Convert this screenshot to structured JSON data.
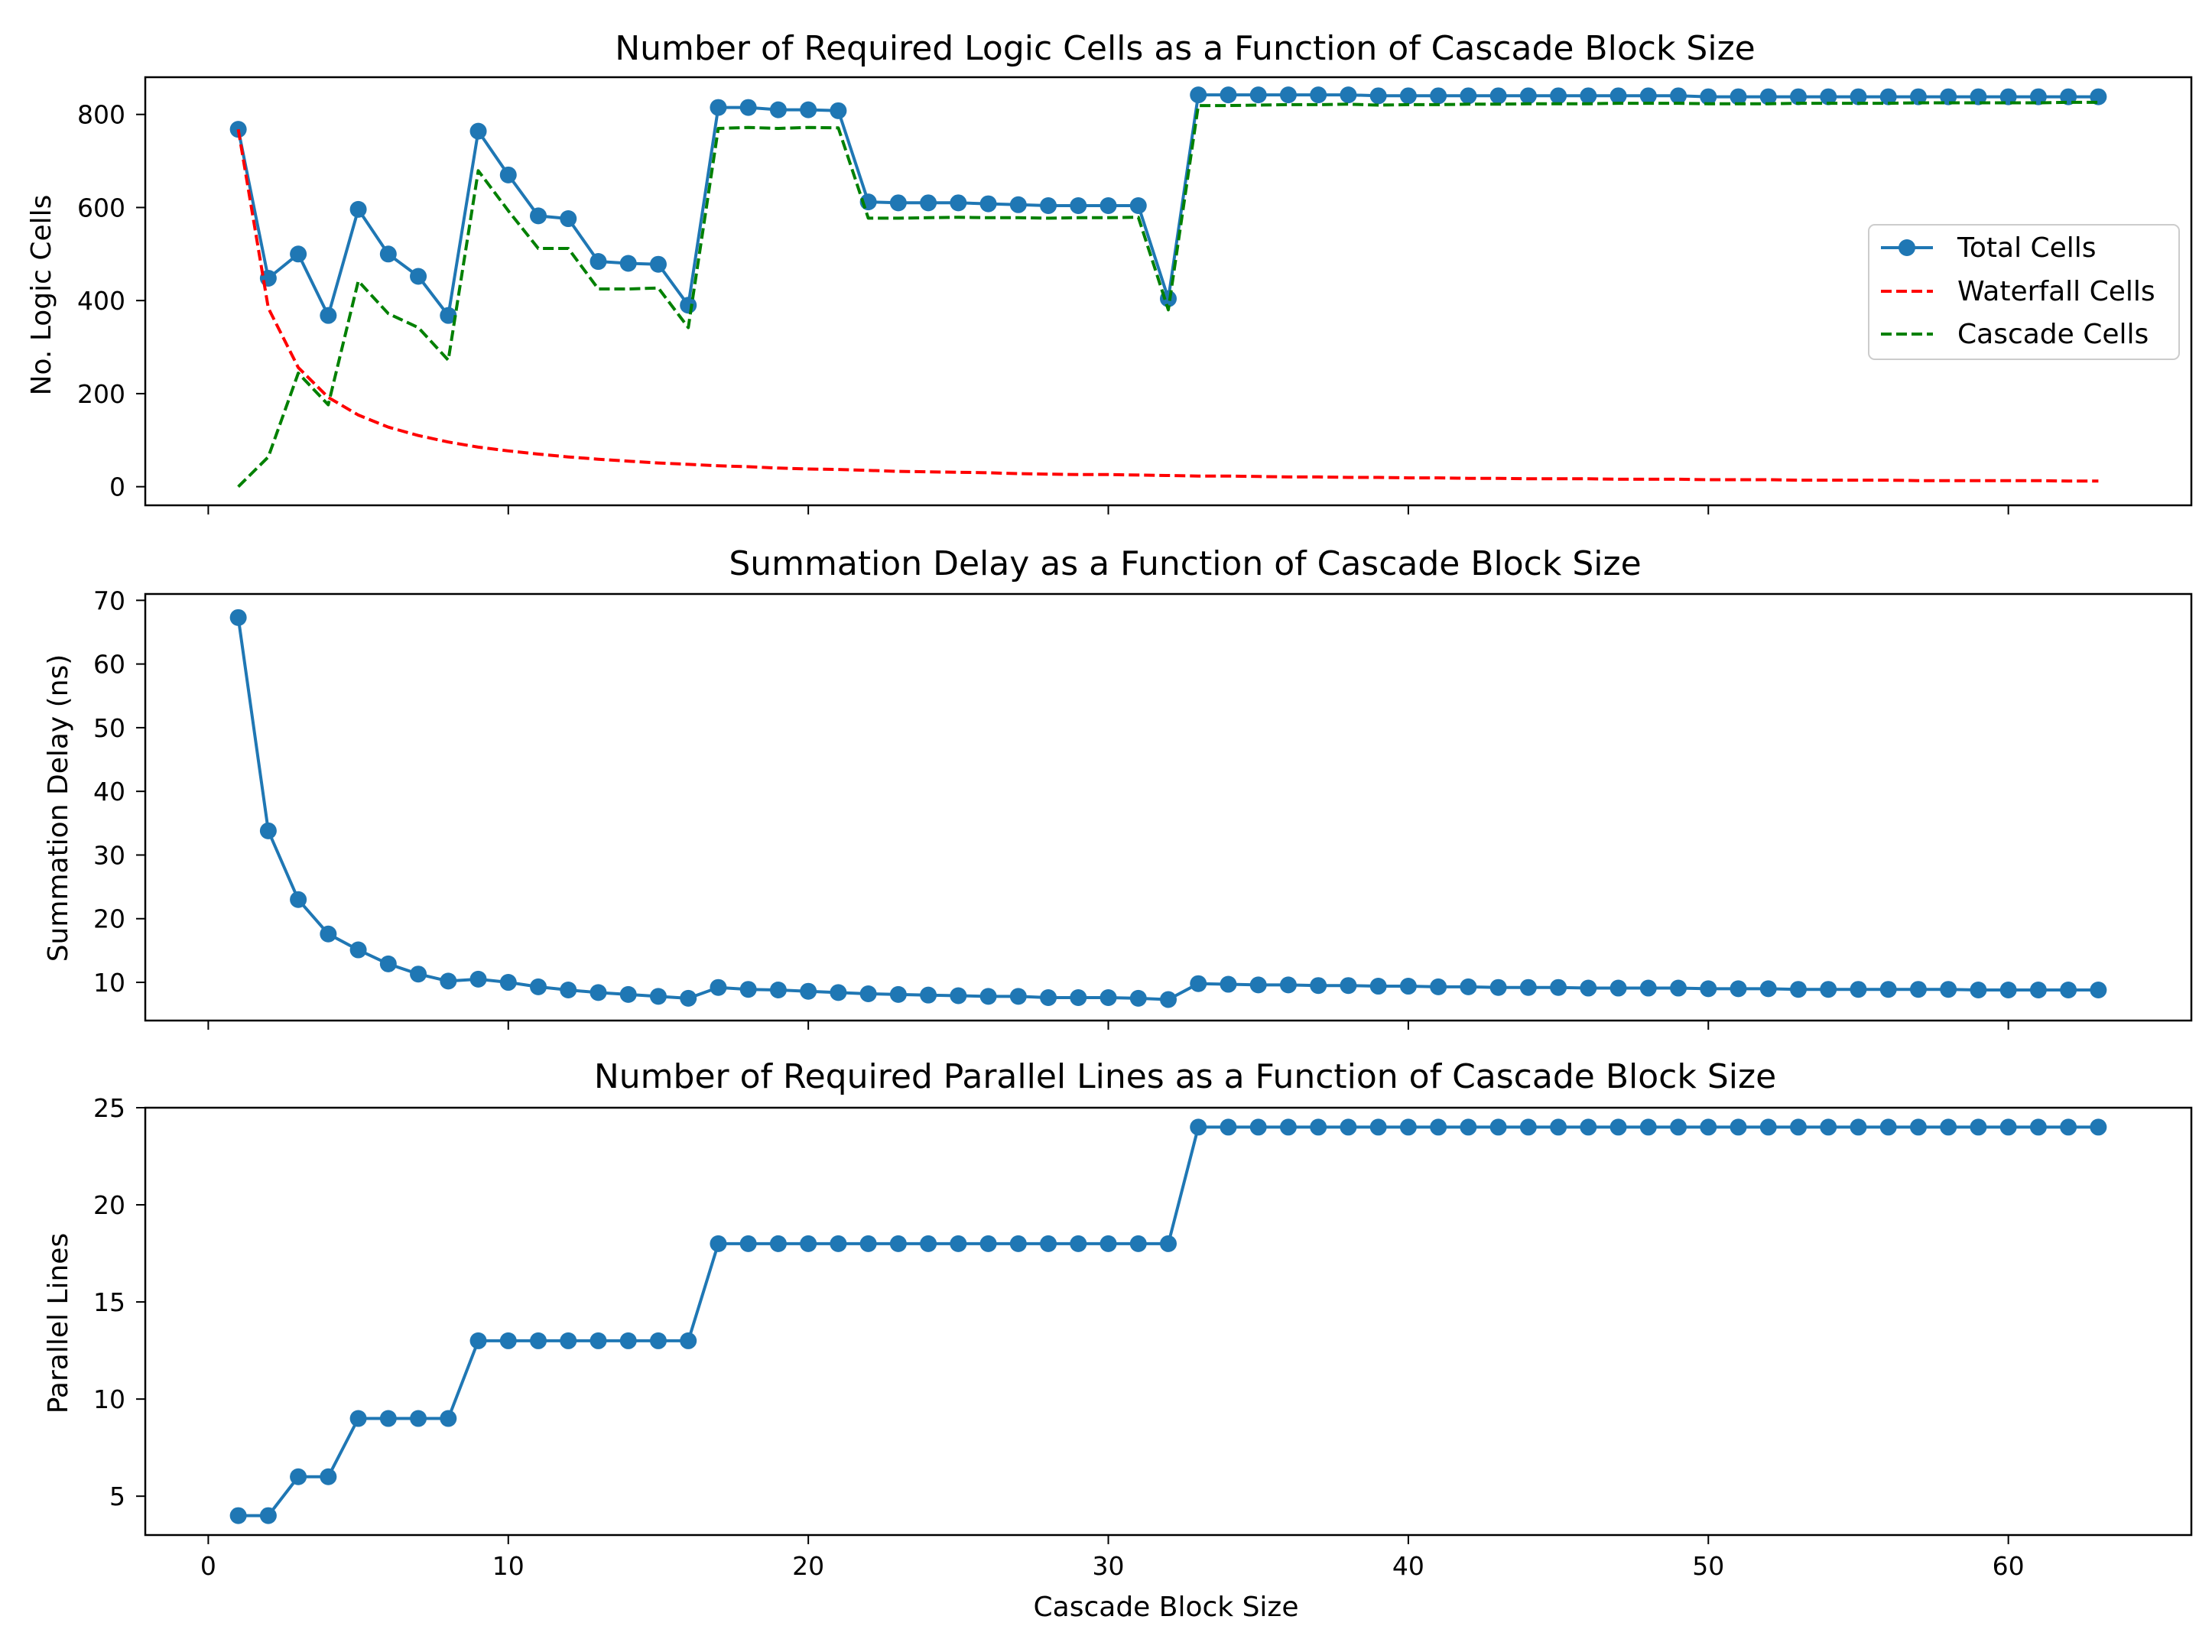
{
  "figure": {
    "xlabel": "Cascade Block Size",
    "x_ticks": [
      0,
      10,
      20,
      30,
      40,
      50,
      60
    ],
    "x_range": [
      -2.1,
      66.1
    ]
  },
  "colors": {
    "total": "#1f77b4",
    "waterfall": "#ff0000",
    "cascade": "#008000",
    "axes": "#000000"
  },
  "chart_data": [
    {
      "type": "line",
      "title": "Number of Required Logic Cells as a Function of Cascade Block Size",
      "xlabel": "",
      "ylabel": "No. Logic Cells",
      "ylim": [
        -40,
        880
      ],
      "yticks": [
        0,
        200,
        400,
        600,
        800
      ],
      "legend_position": "center-right",
      "x": [
        1,
        2,
        3,
        4,
        5,
        6,
        7,
        8,
        9,
        10,
        11,
        12,
        13,
        14,
        15,
        16,
        17,
        18,
        19,
        20,
        21,
        22,
        23,
        24,
        25,
        26,
        27,
        28,
        29,
        30,
        31,
        32,
        33,
        34,
        35,
        36,
        37,
        38,
        39,
        40,
        41,
        42,
        43,
        44,
        45,
        46,
        47,
        48,
        49,
        50,
        51,
        52,
        53,
        54,
        55,
        56,
        57,
        58,
        59,
        60,
        61,
        62,
        63
      ],
      "series": [
        {
          "name": "Total Cells",
          "style": "line-marker",
          "values": [
            768,
            448,
            500,
            368,
            596,
            500,
            452,
            368,
            764,
            670,
            582,
            576,
            484,
            480,
            478,
            390,
            815,
            815,
            810,
            810,
            808,
            612,
            610,
            610,
            610,
            608,
            606,
            604,
            604,
            604,
            604,
            404,
            842,
            842,
            842,
            842,
            842,
            842,
            840,
            840,
            840,
            840,
            840,
            840,
            840,
            840,
            840,
            840,
            840,
            838,
            838,
            838,
            838,
            838,
            838,
            838,
            838,
            838,
            838,
            838,
            838,
            838,
            838
          ]
        },
        {
          "name": "Waterfall Cells",
          "style": "dashed",
          "values": [
            768,
            384,
            256,
            192,
            154,
            128,
            110,
            96,
            85,
            77,
            70,
            64,
            59,
            55,
            51,
            48,
            45,
            43,
            40,
            38,
            37,
            35,
            33,
            32,
            31,
            30,
            28,
            27,
            26,
            26,
            25,
            24,
            23,
            23,
            22,
            21,
            21,
            20,
            20,
            19,
            19,
            18,
            18,
            17,
            17,
            17,
            16,
            16,
            16,
            15,
            15,
            15,
            14,
            14,
            14,
            14,
            13,
            13,
            13,
            13,
            13,
            12,
            12
          ]
        },
        {
          "name": "Cascade Cells",
          "style": "dashed",
          "values": [
            0,
            64,
            244,
            176,
            442,
            372,
            342,
            272,
            679,
            593,
            512,
            512,
            425,
            425,
            427,
            342,
            770,
            772,
            770,
            772,
            771,
            577,
            577,
            578,
            579,
            578,
            578,
            577,
            578,
            578,
            579,
            380,
            819,
            819,
            820,
            821,
            821,
            822,
            820,
            821,
            821,
            822,
            822,
            823,
            823,
            823,
            824,
            824,
            824,
            823,
            823,
            823,
            824,
            824,
            824,
            824,
            825,
            825,
            825,
            825,
            825,
            826,
            826
          ]
        }
      ]
    },
    {
      "type": "line",
      "title": "Summation Delay as a Function of Cascade Block Size",
      "xlabel": "",
      "ylabel": "Summation Delay (ns)",
      "ylim": [
        4,
        71
      ],
      "yticks": [
        10,
        20,
        30,
        40,
        50,
        60,
        70
      ],
      "x": [
        1,
        2,
        3,
        4,
        5,
        6,
        7,
        8,
        9,
        10,
        11,
        12,
        13,
        14,
        15,
        16,
        17,
        18,
        19,
        20,
        21,
        22,
        23,
        24,
        25,
        26,
        27,
        28,
        29,
        30,
        31,
        32,
        33,
        34,
        35,
        36,
        37,
        38,
        39,
        40,
        41,
        42,
        43,
        44,
        45,
        46,
        47,
        48,
        49,
        50,
        51,
        52,
        53,
        54,
        55,
        56,
        57,
        58,
        59,
        60,
        61,
        62,
        63
      ],
      "series": [
        {
          "name": "Summation Delay",
          "style": "line-marker",
          "values": [
            67.3,
            33.8,
            23.0,
            17.6,
            15.1,
            12.9,
            11.3,
            10.2,
            10.5,
            10.0,
            9.3,
            8.8,
            8.4,
            8.1,
            7.8,
            7.5,
            9.2,
            8.9,
            8.8,
            8.6,
            8.4,
            8.2,
            8.1,
            8.0,
            7.9,
            7.8,
            7.8,
            7.6,
            7.6,
            7.6,
            7.5,
            7.3,
            9.8,
            9.7,
            9.6,
            9.6,
            9.5,
            9.5,
            9.4,
            9.4,
            9.3,
            9.3,
            9.2,
            9.2,
            9.2,
            9.1,
            9.1,
            9.1,
            9.1,
            9.0,
            9.0,
            9.0,
            8.9,
            8.9,
            8.9,
            8.9,
            8.9,
            8.9,
            8.8,
            8.8,
            8.8,
            8.8,
            8.8
          ]
        }
      ]
    },
    {
      "type": "line",
      "title": "Number of Required Parallel Lines as a Function of Cascade Block Size",
      "xlabel": "Cascade Block Size",
      "ylabel": "Parallel Lines",
      "ylim": [
        3,
        25
      ],
      "yticks": [
        5,
        10,
        15,
        20,
        25
      ],
      "x": [
        1,
        2,
        3,
        4,
        5,
        6,
        7,
        8,
        9,
        10,
        11,
        12,
        13,
        14,
        15,
        16,
        17,
        18,
        19,
        20,
        21,
        22,
        23,
        24,
        25,
        26,
        27,
        28,
        29,
        30,
        31,
        32,
        33,
        34,
        35,
        36,
        37,
        38,
        39,
        40,
        41,
        42,
        43,
        44,
        45,
        46,
        47,
        48,
        49,
        50,
        51,
        52,
        53,
        54,
        55,
        56,
        57,
        58,
        59,
        60,
        61,
        62,
        63
      ],
      "series": [
        {
          "name": "Parallel Lines",
          "style": "line-marker",
          "values": [
            4,
            4,
            6,
            6,
            9,
            9,
            9,
            9,
            13,
            13,
            13,
            13,
            13,
            13,
            13,
            13,
            18,
            18,
            18,
            18,
            18,
            18,
            18,
            18,
            18,
            18,
            18,
            18,
            18,
            18,
            18,
            18,
            24,
            24,
            24,
            24,
            24,
            24,
            24,
            24,
            24,
            24,
            24,
            24,
            24,
            24,
            24,
            24,
            24,
            24,
            24,
            24,
            24,
            24,
            24,
            24,
            24,
            24,
            24,
            24,
            24,
            24,
            24
          ]
        }
      ]
    }
  ]
}
